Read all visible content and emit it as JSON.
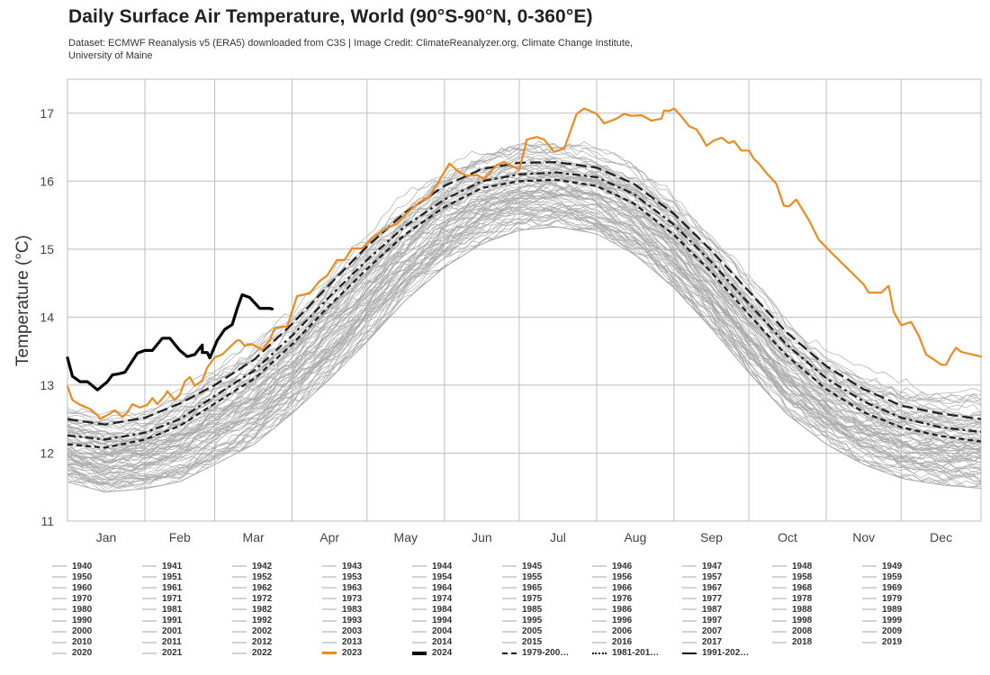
{
  "header": {
    "title": "Daily Surface Air Temperature, World (90°S-90°N, 0-360°E)",
    "subtitle": "Dataset: ECMWF Reanalysis v5 (ERA5) downloaded from C3S | Image Credit: ClimateReanalyzer.org, Climate Change Institute, University of Maine"
  },
  "chart_data": {
    "type": "line",
    "title": "Daily Surface Air Temperature, World (90°S-90°N, 0-360°E)",
    "xlabel": "",
    "ylabel": "Temperature (°C)",
    "xlim": [
      0,
      366
    ],
    "ylim": [
      11,
      17.5
    ],
    "yticks": [
      11,
      12,
      13,
      14,
      15,
      16,
      17
    ],
    "grid": true,
    "month_starts": [
      0,
      31,
      59,
      90,
      120,
      151,
      181,
      212,
      243,
      273,
      304,
      334,
      366
    ],
    "xtick_labels": [
      "Jan",
      "Feb",
      "Mar",
      "Apr",
      "May",
      "Jun",
      "Jul",
      "Aug",
      "Sep",
      "Oct",
      "Nov",
      "Dec"
    ],
    "x_unit": "day of year",
    "colors": {
      "historical": "#a9a9a9",
      "y2023": "#ee8a1e",
      "y2024": "#000000",
      "clim": "#222222",
      "grid": "#bdbdbd"
    },
    "historical_envelope": {
      "description": "Individual years 1940-2022 (gray lines), approximate range",
      "day": [
        0,
        15,
        31,
        45,
        59,
        75,
        90,
        105,
        120,
        135,
        151,
        166,
        181,
        196,
        212,
        227,
        243,
        258,
        273,
        288,
        304,
        319,
        334,
        350,
        366
      ],
      "lower": [
        11.55,
        11.4,
        11.45,
        11.55,
        11.8,
        12.1,
        12.55,
        13.05,
        13.6,
        14.2,
        14.7,
        15.05,
        15.25,
        15.3,
        15.2,
        14.9,
        14.4,
        13.8,
        13.15,
        12.55,
        12.1,
        11.8,
        11.6,
        11.5,
        11.45
      ],
      "upper": [
        12.85,
        12.75,
        12.8,
        13.1,
        13.45,
        13.85,
        14.3,
        14.9,
        15.45,
        15.95,
        16.4,
        16.65,
        16.75,
        16.75,
        16.65,
        16.4,
        15.95,
        15.4,
        14.75,
        14.15,
        13.65,
        13.35,
        13.15,
        13.1,
        13.1
      ]
    },
    "series": [
      {
        "name": "2023",
        "style": "solid",
        "color": "#ee8a1e",
        "day": [
          0,
          2,
          5,
          9,
          12,
          13,
          16,
          19,
          22,
          24,
          26,
          29,
          32,
          34,
          36,
          39,
          40,
          43,
          45,
          47,
          49,
          51,
          54,
          56,
          59,
          62,
          65,
          68,
          69,
          71,
          74,
          76,
          78,
          81,
          83,
          86,
          88,
          92,
          97,
          101,
          104,
          108,
          111,
          114,
          118,
          122,
          128,
          132,
          136,
          141,
          145,
          153,
          157,
          160,
          164,
          167,
          172,
          175,
          181,
          184,
          188,
          191,
          195,
          199,
          204,
          207,
          212,
          215,
          220,
          223,
          226,
          230,
          234,
          238,
          239,
          241,
          243,
          246,
          249,
          252,
          254,
          256,
          259,
          262,
          265,
          267,
          270,
          273,
          275,
          277,
          280,
          284,
          287,
          289,
          292,
          297,
          301,
          306,
          319,
          321,
          326,
          329,
          331,
          334,
          338,
          341,
          344,
          347,
          350,
          352,
          354,
          356,
          358,
          366
        ],
        "temp": [
          12.98,
          12.78,
          12.71,
          12.65,
          12.56,
          12.5,
          12.56,
          12.63,
          12.53,
          12.6,
          12.72,
          12.67,
          12.71,
          12.81,
          12.72,
          12.85,
          12.91,
          12.78,
          12.86,
          13.05,
          13.12,
          12.99,
          13.07,
          13.26,
          13.41,
          13.45,
          13.56,
          13.66,
          13.66,
          13.58,
          13.6,
          13.56,
          13.52,
          13.66,
          13.84,
          13.86,
          13.86,
          14.31,
          14.35,
          14.53,
          14.61,
          14.84,
          14.84,
          15.01,
          15.01,
          15.17,
          15.31,
          15.37,
          15.53,
          15.69,
          15.77,
          16.26,
          16.13,
          16.08,
          16.09,
          16.03,
          16.24,
          16.28,
          16.17,
          16.61,
          16.65,
          16.61,
          16.43,
          16.48,
          16.99,
          17.07,
          16.99,
          16.85,
          16.92,
          16.99,
          16.96,
          16.97,
          16.89,
          16.92,
          17.04,
          17.03,
          17.07,
          16.95,
          16.81,
          16.76,
          16.65,
          16.52,
          16.6,
          16.64,
          16.56,
          16.59,
          16.45,
          16.45,
          16.33,
          16.26,
          16.12,
          15.96,
          15.64,
          15.63,
          15.73,
          15.43,
          15.14,
          14.95,
          14.48,
          14.36,
          14.36,
          14.46,
          14.08,
          13.88,
          13.93,
          13.73,
          13.45,
          13.38,
          13.3,
          13.3,
          13.44,
          13.55,
          13.49,
          13.42
        ]
      },
      {
        "name": "2024",
        "style": "solid-thick",
        "color": "#000000",
        "day": [
          0,
          2,
          5,
          8,
          12,
          16,
          18,
          21,
          23,
          28,
          31,
          34,
          38,
          39,
          41,
          45,
          48,
          51,
          54,
          54,
          56,
          57,
          60,
          63,
          66,
          68,
          70,
          73,
          77,
          81,
          82
        ],
        "temp": [
          13.4,
          13.13,
          13.05,
          13.05,
          12.93,
          13.05,
          13.15,
          13.17,
          13.19,
          13.47,
          13.51,
          13.51,
          13.69,
          13.69,
          13.69,
          13.51,
          13.42,
          13.45,
          13.59,
          13.48,
          13.48,
          13.4,
          13.66,
          13.82,
          13.89,
          14.13,
          14.33,
          14.29,
          14.13,
          14.13,
          14.12
        ]
      },
      {
        "name": "1979-2000 mean",
        "legend_label": "1979-200…",
        "style": "dashed",
        "color": "#222222",
        "day": [
          0,
          15,
          31,
          45,
          59,
          75,
          90,
          105,
          120,
          135,
          151,
          166,
          181,
          196,
          212,
          227,
          243,
          258,
          273,
          288,
          304,
          319,
          334,
          350,
          366
        ],
        "temp": [
          12.13,
          12.08,
          12.2,
          12.4,
          12.73,
          13.1,
          13.6,
          14.17,
          14.71,
          15.21,
          15.62,
          15.9,
          16.0,
          16.02,
          15.93,
          15.67,
          15.21,
          14.66,
          14.04,
          13.44,
          12.94,
          12.6,
          12.38,
          12.25,
          12.17
        ]
      },
      {
        "name": "1981-2010 mean",
        "legend_label": "1981-201…",
        "style": "dash-dot",
        "color": "#222222",
        "day": [
          0,
          15,
          31,
          45,
          59,
          75,
          90,
          105,
          120,
          135,
          151,
          166,
          181,
          196,
          212,
          227,
          243,
          258,
          273,
          288,
          304,
          319,
          334,
          350,
          366
        ],
        "temp": [
          12.26,
          12.2,
          12.3,
          12.5,
          12.84,
          13.22,
          13.73,
          14.3,
          14.84,
          15.33,
          15.73,
          16.0,
          16.1,
          16.13,
          16.06,
          15.81,
          15.36,
          14.81,
          14.2,
          13.6,
          13.1,
          12.76,
          12.52,
          12.38,
          12.31
        ]
      },
      {
        "name": "1991-2020 mean",
        "legend_label": "1991-202…",
        "style": "long-dash",
        "color": "#222222",
        "day": [
          0,
          15,
          31,
          45,
          59,
          75,
          90,
          105,
          120,
          135,
          151,
          166,
          181,
          196,
          212,
          227,
          243,
          258,
          273,
          288,
          304,
          319,
          334,
          350,
          366
        ],
        "temp": [
          12.5,
          12.42,
          12.52,
          12.73,
          13.0,
          13.38,
          13.9,
          14.48,
          15.04,
          15.53,
          15.93,
          16.18,
          16.27,
          16.28,
          16.2,
          15.96,
          15.52,
          14.98,
          14.38,
          13.78,
          13.28,
          12.94,
          12.7,
          12.58,
          12.5
        ]
      }
    ],
    "legend": {
      "placement": "bottom",
      "columns": [
        [
          "1940",
          "1950",
          "1960",
          "1970",
          "1980",
          "1990",
          "2000",
          "2010",
          "2020"
        ],
        [
          "1941",
          "1951",
          "1961",
          "1971",
          "1981",
          "1991",
          "2001",
          "2011",
          "2021"
        ],
        [
          "1942",
          "1952",
          "1962",
          "1972",
          "1982",
          "1992",
          "2002",
          "2012",
          "2022"
        ],
        [
          "1943",
          "1953",
          "1963",
          "1973",
          "1983",
          "1993",
          "2003",
          "2013",
          "2023"
        ],
        [
          "1944",
          "1954",
          "1964",
          "1974",
          "1984",
          "1994",
          "2004",
          "2014",
          "2024"
        ],
        [
          "1945",
          "1955",
          "1965",
          "1975",
          "1985",
          "1995",
          "2005",
          "2015",
          "1979-200…"
        ],
        [
          "1946",
          "1956",
          "1966",
          "1976",
          "1986",
          "1996",
          "2006",
          "2016",
          "1981-201…"
        ],
        [
          "1947",
          "1957",
          "1967",
          "1977",
          "1987",
          "1997",
          "2007",
          "2017",
          "1991-202…"
        ],
        [
          "1948",
          "1958",
          "1968",
          "1978",
          "1988",
          "1998",
          "2008",
          "2018"
        ],
        [
          "1949",
          "1959",
          "1969",
          "1979",
          "1989",
          "1999",
          "2009",
          "2019"
        ]
      ]
    }
  }
}
